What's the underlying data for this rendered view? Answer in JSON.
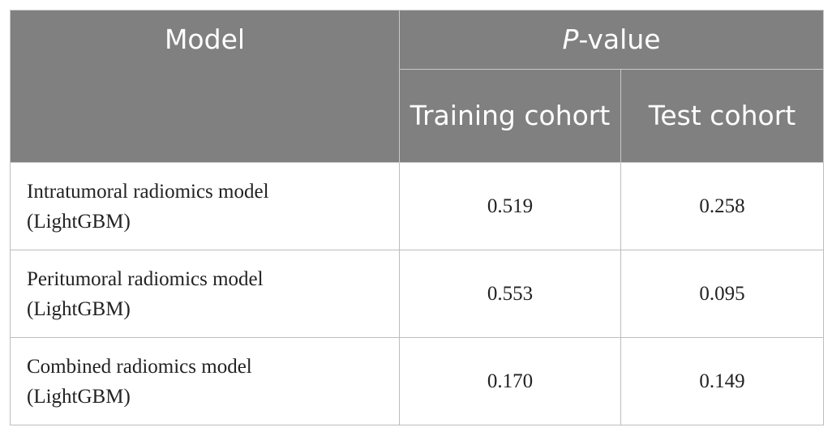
{
  "header": {
    "model": "Model",
    "p_value": {
      "italic": "P",
      "rest": "-value"
    },
    "training": "Training cohort",
    "test": "Test cohort"
  },
  "table": {
    "rows": [
      [
        "Intratumoral radiomics model (LightGBM)",
        "0.519",
        "0.258"
      ],
      [
        "Peritumoral radiomics model (LightGBM)",
        "0.553",
        "0.095"
      ],
      [
        "Combined radiomics model (LightGBM)",
        "0.170",
        "0.149"
      ]
    ]
  }
}
